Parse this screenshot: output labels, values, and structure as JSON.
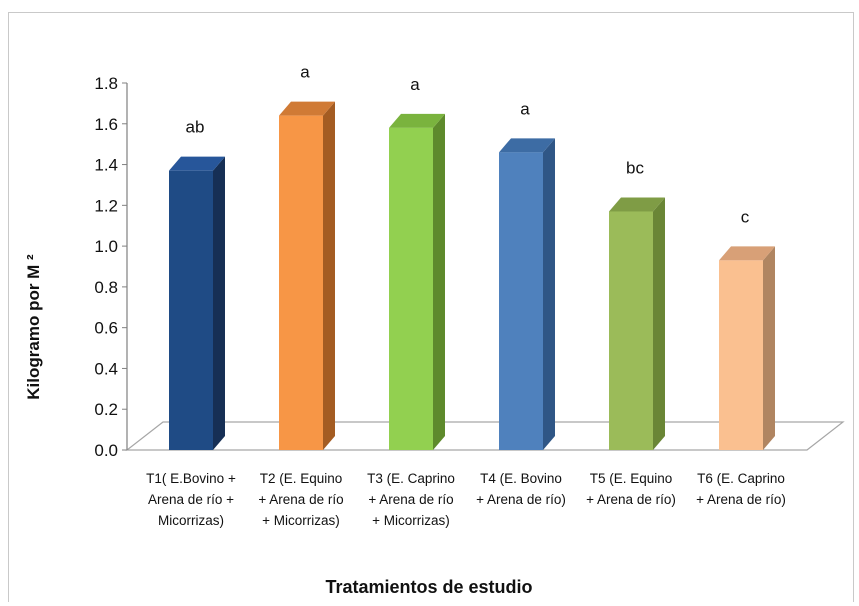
{
  "chart_data": {
    "type": "bar",
    "categories": [
      [
        "T1( E.Bovino +",
        "Arena de río +",
        "Micorrizas)"
      ],
      [
        "T2 (E. Equino",
        "+ Arena de río",
        "+ Micorrizas)"
      ],
      [
        "T3 (E. Caprino",
        "+ Arena de río",
        "+ Micorrizas)"
      ],
      [
        "T4 (E. Bovino",
        "+ Arena de río)"
      ],
      [
        "T5 (E. Equino",
        "+ Arena de río)"
      ],
      [
        "T6 (E. Caprino",
        "+ Arena de río)"
      ]
    ],
    "values": [
      1.37,
      1.64,
      1.58,
      1.46,
      1.17,
      0.93
    ],
    "significance": [
      "ab",
      "a",
      "a",
      "a",
      "bc",
      "c"
    ],
    "colors": [
      {
        "front": "#1f4b85",
        "side": "#162f55",
        "top": "#27569a"
      },
      {
        "front": "#f79646",
        "side": "#a45c22",
        "top": "#d07a35"
      },
      {
        "front": "#92d050",
        "side": "#5e8a2c",
        "top": "#7ab33e"
      },
      {
        "front": "#4f81bd",
        "side": "#2f5686",
        "top": "#3d6ca4"
      },
      {
        "front": "#9bbb59",
        "side": "#6a8636",
        "top": "#7f9c45"
      },
      {
        "front": "#fac090",
        "side": "#b08561",
        "top": "#d8a077"
      }
    ],
    "y_ticks": [
      "0.0",
      "0.2",
      "0.4",
      "0.6",
      "0.8",
      "1.0",
      "1.2",
      "1.4",
      "1.6",
      "1.8"
    ],
    "ylim": [
      0,
      1.8
    ],
    "ylabel": "Kilogramo por  M ²",
    "xlabel": "Tratamientos de estudio",
    "grid": false
  }
}
